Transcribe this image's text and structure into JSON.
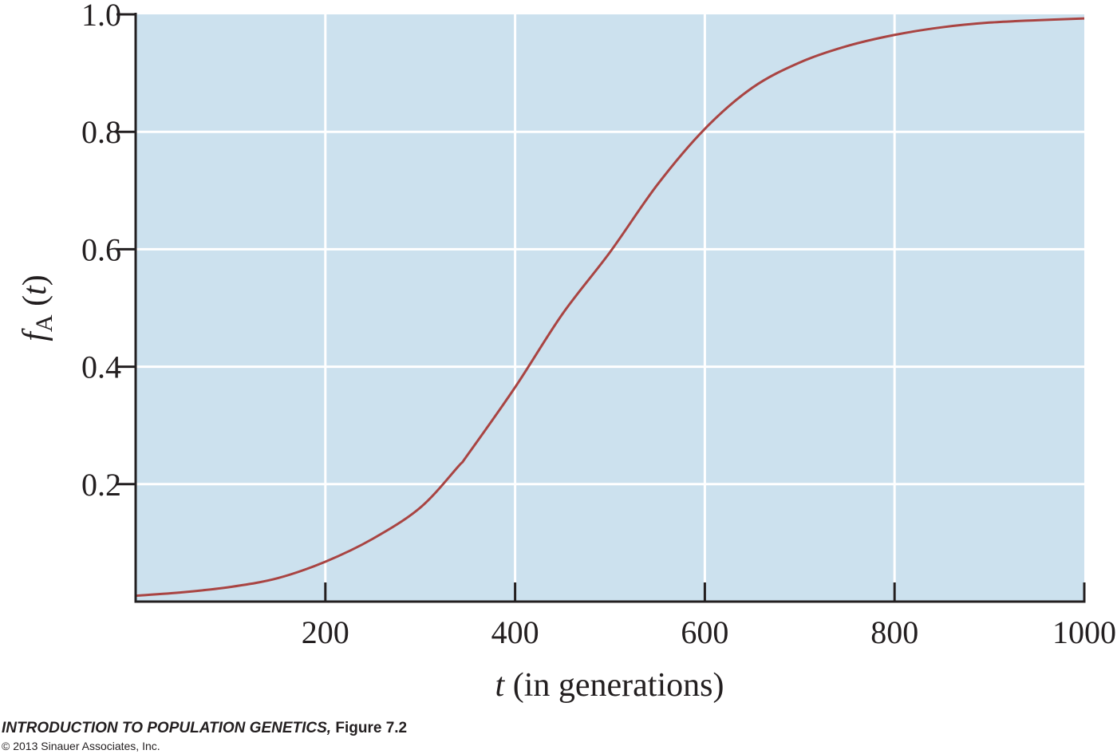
{
  "chart_data": {
    "type": "line",
    "xlabel": "t (in generations)",
    "xlabel_var": "t",
    "xlabel_rest": " (in generations)",
    "ylabel": "f_A (t)",
    "ylabel_func": "f",
    "ylabel_sub": "A",
    "ylabel_paren_open": " (",
    "ylabel_var": "t",
    "ylabel_paren_close": ")",
    "xlim": [
      0,
      1000
    ],
    "ylim": [
      0,
      1.0
    ],
    "xticks": [
      200,
      400,
      600,
      800,
      1000
    ],
    "xtick_labels": [
      "200",
      "400",
      "600",
      "800",
      "1000"
    ],
    "yticks": [
      0.2,
      0.4,
      0.6,
      0.8,
      1.0
    ],
    "ytick_labels": [
      "0.2",
      "0.4",
      "0.6",
      "0.8",
      "1.0"
    ],
    "grid": true,
    "colors": {
      "plot_background": "#cce1ee",
      "grid": "#ffffff",
      "line": "#a94442",
      "axis": "#231f20"
    },
    "series": [
      {
        "x": [
          0,
          50,
          100,
          150,
          200,
          250,
          300,
          340,
          350,
          400,
          450,
          500,
          550,
          600,
          650,
          700,
          750,
          800,
          850,
          900,
          950,
          1000
        ],
        "y": [
          0.01,
          0.016,
          0.025,
          0.04,
          0.068,
          0.107,
          0.16,
          0.23,
          0.25,
          0.365,
          0.49,
          0.595,
          0.71,
          0.805,
          0.875,
          0.918,
          0.946,
          0.965,
          0.978,
          0.986,
          0.99,
          0.993
        ]
      }
    ]
  },
  "caption": {
    "title": "INTRODUCTION TO POPULATION GENETICS,",
    "figure": " Figure 7.2",
    "copyright": "© 2013 Sinauer Associates, Inc."
  }
}
